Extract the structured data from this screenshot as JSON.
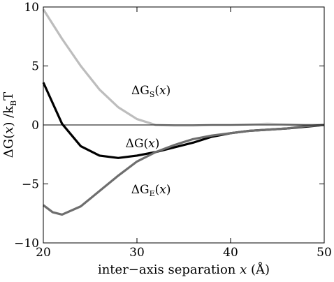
{
  "chart_data": {
    "type": "line",
    "xlabel": {
      "text": "inter−axis separation ",
      "var": "x",
      "unit": " (Å)"
    },
    "ylabel": {
      "text": "ΔG(",
      "var": "x",
      "close": ")  /k",
      "sub": "B",
      "tail": "T"
    },
    "xlim": [
      20,
      50
    ],
    "ylim": [
      -10,
      10
    ],
    "xticks": [
      20,
      30,
      40,
      50
    ],
    "yticks": [
      -10,
      -5,
      0,
      5,
      10
    ],
    "ytick_labels": [
      "−10",
      "−5",
      "0",
      "5",
      "10"
    ],
    "xtick_labels": [
      "20",
      "30",
      "40",
      "50"
    ],
    "grid": false,
    "zero_line": true,
    "series": [
      {
        "name": "ΔG_S(x)",
        "color": "#bdbdbd",
        "x": [
          20,
          22,
          24,
          26,
          28,
          30,
          32,
          34,
          36,
          38,
          40,
          42,
          44,
          46,
          48,
          50
        ],
        "y": [
          9.8,
          7.3,
          5.0,
          3.0,
          1.5,
          0.5,
          0.0,
          -0.05,
          -0.05,
          0.0,
          0.0,
          0.05,
          0.1,
          0.05,
          0.0,
          0.0
        ]
      },
      {
        "name": "ΔG(x)",
        "color": "#000000",
        "x": [
          20,
          22,
          24,
          26,
          28,
          30,
          32,
          34,
          36,
          38,
          40,
          42,
          44,
          46,
          48,
          50
        ],
        "y": [
          3.6,
          0.1,
          -1.8,
          -2.6,
          -2.8,
          -2.6,
          -2.3,
          -1.9,
          -1.5,
          -1.0,
          -0.7,
          -0.5,
          -0.4,
          -0.3,
          -0.15,
          0.0
        ]
      },
      {
        "name": "ΔG_E(x)",
        "color": "#6e6e6e",
        "x": [
          20,
          21,
          22,
          24,
          26,
          28,
          30,
          32,
          34,
          36,
          38,
          40,
          42,
          44,
          46,
          48,
          50
        ],
        "y": [
          -6.8,
          -7.4,
          -7.6,
          -6.9,
          -5.6,
          -4.3,
          -3.1,
          -2.3,
          -1.7,
          -1.2,
          -0.9,
          -0.7,
          -0.5,
          -0.4,
          -0.3,
          -0.1,
          0.0
        ]
      }
    ],
    "annotations": [
      {
        "base": "ΔG",
        "sub": "S",
        "paren": "(",
        "var": "x",
        "close": ")",
        "ax": 31.5,
        "ay": 2.6
      },
      {
        "base": "ΔG(",
        "sub": "",
        "paren": "",
        "var": "x",
        "close": ")",
        "ax": 30.6,
        "ay": -1.9
      },
      {
        "base": "ΔG",
        "sub": "E",
        "paren": "(",
        "var": "x",
        "close": ")",
        "ax": 31.5,
        "ay": -5.8
      }
    ]
  }
}
